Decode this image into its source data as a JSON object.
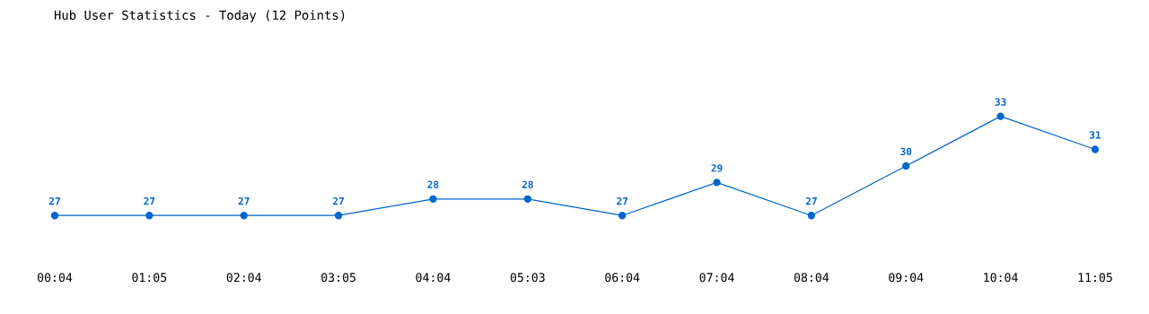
{
  "chart_data": {
    "type": "line",
    "title": "Hub User Statistics - Today (12 Points)",
    "categories": [
      "00:04",
      "01:05",
      "02:04",
      "03:05",
      "04:04",
      "05:03",
      "06:04",
      "07:04",
      "08:04",
      "09:04",
      "10:04",
      "11:05"
    ],
    "series": [
      {
        "color": "#0066cc",
        "values": [
          27,
          27,
          27,
          27,
          28,
          28,
          27,
          29,
          27,
          30,
          33,
          31
        ]
      }
    ],
    "data_labels": true,
    "marker": "circle",
    "line_style": "solid",
    "grid": false,
    "tick_labels": "x"
  }
}
